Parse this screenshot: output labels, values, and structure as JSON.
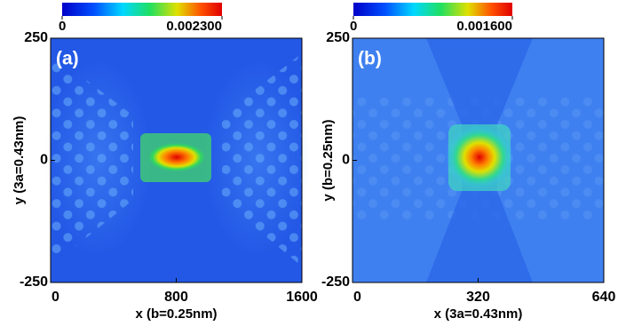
{
  "chart_data": [
    {
      "type": "heatmap",
      "panel_label": "(a)",
      "x_label": "x (b=0.25nm)",
      "y_label": "y (3a=0.43nm)",
      "xlim": [
        0,
        1600
      ],
      "xticks": [
        0,
        800,
        1600
      ],
      "ylim": [
        -250,
        250
      ],
      "yticks": [
        -250,
        0,
        250
      ],
      "clim": [
        0,
        0.0023
      ],
      "cticks": [
        0,
        {
          "value": 0.0023,
          "label": "0.002300"
        }
      ]
    },
    {
      "type": "heatmap",
      "panel_label": "(b)",
      "x_label": "x (3a=0.43nm)",
      "y_label": "y (b=0.25nm)",
      "xlim": [
        0,
        640
      ],
      "xticks": [
        0,
        320,
        640
      ],
      "ylim": [
        -250,
        250
      ],
      "yticks": [
        -250,
        0,
        250
      ],
      "clim": [
        0,
        0.0016
      ],
      "cticks": [
        0,
        {
          "value": 0.0016,
          "label": "0.001600"
        }
      ]
    }
  ]
}
